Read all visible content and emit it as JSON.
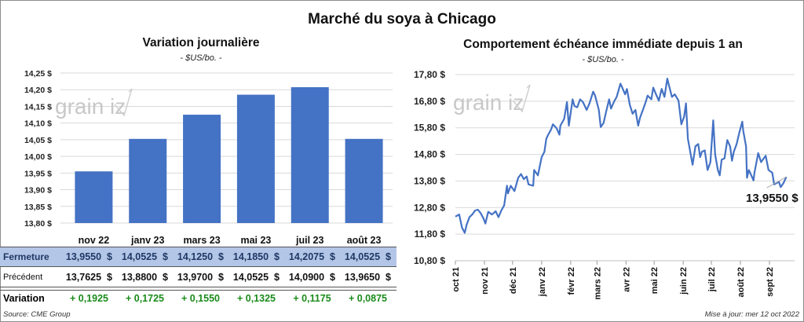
{
  "title": "Marché du soya à Chicago",
  "colors": {
    "bar": "#4472c4",
    "line": "#4472c4",
    "grid": "#d9d9d9",
    "fermeture_band": "#b4c6e7",
    "variation_positive": "#1a8a1a"
  },
  "watermark": "grainwiz",
  "chart_data": [
    {
      "type": "bar",
      "title": "Variation journalière",
      "subtitle": "- $US/bo. -",
      "categories": [
        "nov 22",
        "janv 23",
        "mars 23",
        "mai 23",
        "juil 23",
        "août 23"
      ],
      "values": [
        13.955,
        14.0525,
        14.125,
        14.185,
        14.2075,
        14.0525
      ],
      "ylim": [
        13.8,
        14.25
      ],
      "yticks": [
        "14,25 $",
        "14,20 $",
        "14,15 $",
        "14,10 $",
        "14,05 $",
        "14,00 $",
        "13,95 $",
        "13,90 $",
        "13,85 $",
        "13,80 $"
      ],
      "grid": true
    },
    {
      "type": "line",
      "title": "Comportement  échéance immédiate depuis 1 an",
      "subtitle": "- $US/bo. -",
      "ylim": [
        10.8,
        17.8
      ],
      "yticks": [
        "17,80 $",
        "16,80 $",
        "15,80 $",
        "14,80 $",
        "13,80 $",
        "12,80 $",
        "11,80 $",
        "10,80 $"
      ],
      "xticks": [
        "oct 21",
        "nov 21",
        "déc 21",
        "janv 22",
        "févr 22",
        "mars 22",
        "avr 22",
        "mai 22",
        "juin 22",
        "juil 22",
        "août 22",
        "sept 22"
      ],
      "grid": true,
      "last_value_label": "13,9550 $",
      "points": [
        [
          "2021-10-01",
          12.46
        ],
        [
          "2021-10-05",
          12.54
        ],
        [
          "2021-10-08",
          12.05
        ],
        [
          "2021-10-11",
          11.85
        ],
        [
          "2021-10-13",
          12.15
        ],
        [
          "2021-10-16",
          12.44
        ],
        [
          "2021-10-19",
          12.54
        ],
        [
          "2021-10-22",
          12.69
        ],
        [
          "2021-10-25",
          12.72
        ],
        [
          "2021-10-28",
          12.59
        ],
        [
          "2021-10-31",
          12.39
        ],
        [
          "2021-11-02",
          12.2
        ],
        [
          "2021-11-05",
          12.64
        ],
        [
          "2021-11-09",
          12.54
        ],
        [
          "2021-11-13",
          12.66
        ],
        [
          "2021-11-16",
          12.44
        ],
        [
          "2021-11-19",
          12.69
        ],
        [
          "2021-11-22",
          12.88
        ],
        [
          "2021-11-25",
          13.62
        ],
        [
          "2021-11-26",
          13.33
        ],
        [
          "2021-11-29",
          13.62
        ],
        [
          "2021-12-03",
          13.42
        ],
        [
          "2021-12-07",
          13.92
        ],
        [
          "2021-12-10",
          14.06
        ],
        [
          "2021-12-13",
          13.87
        ],
        [
          "2021-12-16",
          13.97
        ],
        [
          "2021-12-18",
          13.67
        ],
        [
          "2021-12-23",
          13.62
        ],
        [
          "2021-12-24",
          14.21
        ],
        [
          "2021-12-28",
          14.01
        ],
        [
          "2022-01-01",
          14.7
        ],
        [
          "2022-01-04",
          14.9
        ],
        [
          "2022-01-06",
          15.39
        ],
        [
          "2022-01-08",
          15.54
        ],
        [
          "2022-01-11",
          15.73
        ],
        [
          "2022-01-13",
          15.93
        ],
        [
          "2022-01-17",
          15.78
        ],
        [
          "2022-01-20",
          15.54
        ],
        [
          "2022-01-21",
          15.88
        ],
        [
          "2022-01-25",
          16.13
        ],
        [
          "2022-01-28",
          16.77
        ],
        [
          "2022-01-30",
          15.88
        ],
        [
          "2022-02-03",
          16.87
        ],
        [
          "2022-02-05",
          16.62
        ],
        [
          "2022-02-08",
          16.57
        ],
        [
          "2022-02-11",
          16.87
        ],
        [
          "2022-02-14",
          16.77
        ],
        [
          "2022-02-18",
          16.47
        ],
        [
          "2022-02-21",
          16.72
        ],
        [
          "2022-02-25",
          17.16
        ],
        [
          "2022-02-27",
          17.01
        ],
        [
          "2022-03-03",
          16.47
        ],
        [
          "2022-03-05",
          15.83
        ],
        [
          "2022-03-08",
          15.98
        ],
        [
          "2022-03-11",
          16.43
        ],
        [
          "2022-03-14",
          16.87
        ],
        [
          "2022-03-16",
          16.52
        ],
        [
          "2022-03-19",
          16.77
        ],
        [
          "2022-03-22",
          16.96
        ],
        [
          "2022-03-26",
          17.46
        ],
        [
          "2022-03-28",
          17.31
        ],
        [
          "2022-03-31",
          17.06
        ],
        [
          "2022-04-02",
          17.26
        ],
        [
          "2022-04-05",
          16.67
        ],
        [
          "2022-04-08",
          16.33
        ],
        [
          "2022-04-11",
          16.47
        ],
        [
          "2022-04-14",
          15.88
        ],
        [
          "2022-04-16",
          16.18
        ],
        [
          "2022-04-19",
          16.47
        ],
        [
          "2022-04-22",
          16.77
        ],
        [
          "2022-04-24",
          17.01
        ],
        [
          "2022-04-28",
          16.87
        ],
        [
          "2022-04-30",
          17.31
        ],
        [
          "2022-05-03",
          17.06
        ],
        [
          "2022-05-06",
          16.82
        ],
        [
          "2022-05-09",
          17.26
        ],
        [
          "2022-05-12",
          16.96
        ],
        [
          "2022-05-15",
          17.65
        ],
        [
          "2022-05-17",
          17.36
        ],
        [
          "2022-05-20",
          16.96
        ],
        [
          "2022-05-23",
          17.06
        ],
        [
          "2022-05-27",
          16.82
        ],
        [
          "2022-05-30",
          15.93
        ],
        [
          "2022-06-02",
          16.23
        ],
        [
          "2022-06-04",
          16.72
        ],
        [
          "2022-06-06",
          15.39
        ],
        [
          "2022-06-09",
          14.8
        ],
        [
          "2022-06-11",
          14.41
        ],
        [
          "2022-06-14",
          15.1
        ],
        [
          "2022-06-17",
          15.19
        ],
        [
          "2022-06-19",
          14.7
        ],
        [
          "2022-06-21",
          14.9
        ],
        [
          "2022-06-24",
          14.95
        ],
        [
          "2022-06-27",
          14.21
        ],
        [
          "2022-06-30",
          14.51
        ],
        [
          "2022-07-03",
          16.08
        ],
        [
          "2022-07-05",
          14.8
        ],
        [
          "2022-07-08",
          14.21
        ],
        [
          "2022-07-10",
          14.01
        ],
        [
          "2022-07-12",
          14.6
        ],
        [
          "2022-07-15",
          14.65
        ],
        [
          "2022-07-17",
          15.1
        ],
        [
          "2022-07-18",
          15.34
        ],
        [
          "2022-07-21",
          15.1
        ],
        [
          "2022-07-23",
          14.56
        ],
        [
          "2022-07-25",
          14.9
        ],
        [
          "2022-07-28",
          15.19
        ],
        [
          "2022-07-31",
          15.64
        ],
        [
          "2022-08-03",
          16.03
        ],
        [
          "2022-08-04",
          15.69
        ],
        [
          "2022-08-07",
          15.1
        ],
        [
          "2022-08-08",
          13.92
        ],
        [
          "2022-08-10",
          14.21
        ],
        [
          "2022-08-12",
          14.06
        ],
        [
          "2022-08-15",
          13.82
        ],
        [
          "2022-08-16",
          14.11
        ],
        [
          "2022-08-20",
          14.85
        ],
        [
          "2022-08-23",
          14.51
        ],
        [
          "2022-08-28",
          14.75
        ],
        [
          "2022-08-31",
          14.21
        ],
        [
          "2022-09-04",
          14.11
        ],
        [
          "2022-09-06",
          13.67
        ],
        [
          "2022-09-11",
          13.77
        ],
        [
          "2022-09-13",
          13.57
        ],
        [
          "2022-09-16",
          13.72
        ],
        [
          "2022-09-19",
          13.955
        ]
      ]
    }
  ],
  "table": {
    "rows": [
      {
        "label": "Fermeture",
        "values": [
          "13,9550  $",
          "14,0525  $",
          "14,1250  $",
          "14,1850  $",
          "14,2075  $",
          "14,0525  $"
        ]
      },
      {
        "label": "Précédent",
        "values": [
          "13,7625  $",
          "13,8800  $",
          "13,9700  $",
          "14,0525  $",
          "14,0900  $",
          "13,9650  $"
        ]
      },
      {
        "label": "Variation",
        "values": [
          "+ 0,1925",
          "+ 0,1725",
          "+ 0,1550",
          "+ 0,1325",
          "+ 0,1175",
          "+ 0,0875"
        ]
      }
    ]
  },
  "footer": {
    "source": "Source: CME Group",
    "updated": "Mise à jour: mer 12 oct 2022"
  }
}
